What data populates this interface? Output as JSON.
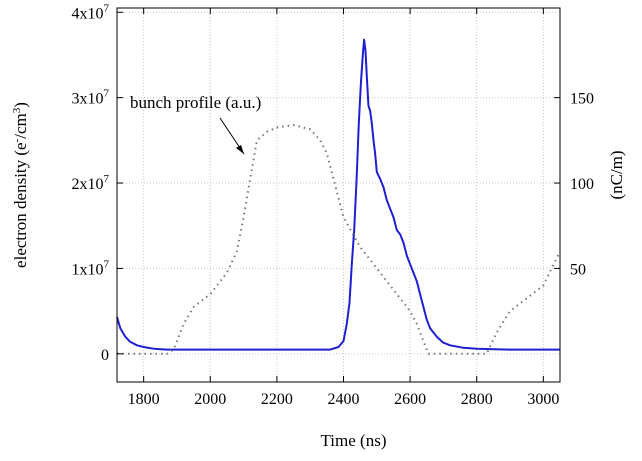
{
  "chart_data": {
    "type": "line",
    "xlabel": "Time (ns)",
    "ylabel_left": "electron density  (e",
    "ylabel_left_sup": "-",
    "ylabel_left_unit": "/cm",
    "ylabel_left_sup2": "3",
    "ylabel_left_close": ")",
    "ylabel_right": "(nC/m)",
    "annotation": "bunch profile (a.u.)",
    "xlim": [
      1720,
      3050
    ],
    "ylim_left": [
      -3.3,
      40.5
    ],
    "ylim_right_ticks": [
      50,
      100,
      150
    ],
    "x_ticks": [
      1800,
      2000,
      2200,
      2400,
      2600,
      2800,
      3000
    ],
    "y_left_ticks": [
      {
        "value": 0,
        "label": "0",
        "exp": ""
      },
      {
        "value": 10,
        "label": "1x10",
        "exp": "7"
      },
      {
        "value": 20,
        "label": "2x10",
        "exp": "7"
      },
      {
        "value": 30,
        "label": "3x10",
        "exp": "7"
      },
      {
        "value": 40,
        "label": "4x10",
        "exp": "7"
      }
    ],
    "y_right_ticks": [
      {
        "value": 50,
        "label": "50"
      },
      {
        "value": 100,
        "label": "100"
      },
      {
        "value": 150,
        "label": "150"
      }
    ],
    "right_axis_scale": {
      "left_at_0": 0,
      "right_per_left_unit": 5.0
    },
    "grid": true,
    "series": [
      {
        "color": "#1f1fd0",
        "style": "solid",
        "axis": "left",
        "x": [
          1720,
          1730,
          1745,
          1760,
          1780,
          1800,
          1830,
          1870,
          1900,
          2000,
          2100,
          2200,
          2300,
          2360,
          2385,
          2400,
          2410,
          2418,
          2425,
          2432,
          2440,
          2446,
          2452,
          2458,
          2462,
          2466,
          2470,
          2475,
          2480,
          2485,
          2490,
          2495,
          2500,
          2510,
          2520,
          2530,
          2540,
          2550,
          2560,
          2570,
          2580,
          2590,
          2600,
          2610,
          2620,
          2630,
          2640,
          2650,
          2660,
          2680,
          2700,
          2720,
          2760,
          2800,
          2900,
          3050
        ],
        "y": [
          4.3,
          3.0,
          2.0,
          1.4,
          1.0,
          0.8,
          0.6,
          0.5,
          0.5,
          0.5,
          0.5,
          0.5,
          0.5,
          0.5,
          0.8,
          1.5,
          3.5,
          6.0,
          10.5,
          14.5,
          21.0,
          27.0,
          31.5,
          35.0,
          36.8,
          35.5,
          32.5,
          29.0,
          28.5,
          27.0,
          25.0,
          23.5,
          21.3,
          20.5,
          19.5,
          18.0,
          17.0,
          16.0,
          14.5,
          14.0,
          13.0,
          11.5,
          10.5,
          9.5,
          8.5,
          7.0,
          5.5,
          4.0,
          3.0,
          2.0,
          1.3,
          1.0,
          0.7,
          0.6,
          0.5,
          0.5
        ]
      },
      {
        "color": "#777777",
        "style": "dotted",
        "axis": "left",
        "x": [
          1720,
          1800,
          1870,
          1890,
          1900,
          1920,
          1950,
          2000,
          2050,
          2080,
          2100,
          2120,
          2140,
          2170,
          2200,
          2250,
          2300,
          2330,
          2350,
          2370,
          2400,
          2450,
          2500,
          2550,
          2600,
          2620,
          2640,
          2655,
          2700,
          2800,
          2830,
          2860,
          2900,
          2950,
          3000,
          3050
        ],
        "y": [
          0,
          0,
          0,
          0.5,
          1.5,
          3.5,
          5.5,
          7.0,
          9.5,
          12.0,
          16.0,
          20.5,
          25.0,
          26.0,
          26.5,
          26.8,
          26.3,
          25.0,
          23.5,
          20.5,
          16.0,
          12.5,
          10.0,
          7.5,
          5.0,
          3.5,
          1.5,
          0,
          0,
          0,
          0,
          2.5,
          5.0,
          6.5,
          8.0,
          12.0
        ]
      }
    ]
  }
}
